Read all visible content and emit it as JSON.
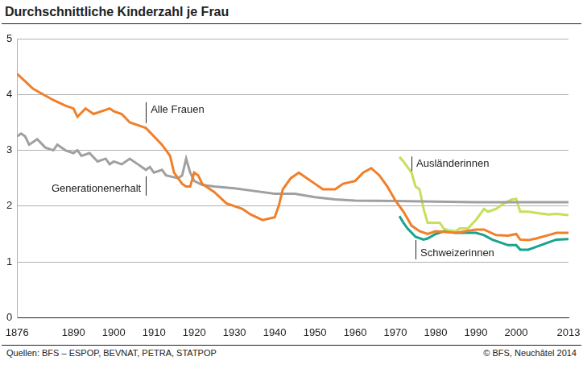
{
  "chart_data": {
    "type": "line",
    "title": "Durchschnittliche Kinderzahl je Frau",
    "source": "Quellen: BFS – ESPOP, BEVNAT, PETRA, STATPOP",
    "credit": "© BFS, Neuchâtel 2014",
    "xlim": [
      1876,
      2013
    ],
    "xticks": [
      1876,
      1890,
      1900,
      1910,
      1920,
      1930,
      1940,
      1950,
      1960,
      1970,
      1980,
      1990,
      2000,
      2013
    ],
    "ylim": [
      0,
      5
    ],
    "yticks": [
      0,
      1,
      2,
      3,
      4,
      5
    ],
    "grid": true,
    "series": [
      {
        "name": "Alle Frauen",
        "color": "#f07f2a",
        "x": [
          1876,
          1880,
          1885,
          1888,
          1890,
          1891,
          1893,
          1895,
          1897,
          1899,
          1900,
          1902,
          1904,
          1906,
          1908,
          1910,
          1912,
          1914,
          1915,
          1917,
          1918,
          1919,
          1920,
          1921,
          1922,
          1925,
          1928,
          1930,
          1932,
          1934,
          1937,
          1940,
          1941,
          1942,
          1944,
          1946,
          1948,
          1950,
          1952,
          1955,
          1957,
          1960,
          1962,
          1964,
          1966,
          1968,
          1970,
          1972,
          1974,
          1976,
          1978,
          1980,
          1985,
          1990,
          1992,
          1995,
          1998,
          2000,
          2001,
          2003,
          2005,
          2008,
          2010,
          2013
        ],
        "values": [
          4.37,
          4.1,
          3.9,
          3.8,
          3.75,
          3.6,
          3.75,
          3.65,
          3.7,
          3.75,
          3.7,
          3.65,
          3.5,
          3.45,
          3.4,
          3.25,
          3.1,
          2.9,
          2.6,
          2.4,
          2.35,
          2.35,
          2.6,
          2.55,
          2.4,
          2.25,
          2.05,
          2.0,
          1.95,
          1.85,
          1.75,
          1.8,
          2.0,
          2.3,
          2.5,
          2.6,
          2.5,
          2.4,
          2.3,
          2.3,
          2.4,
          2.45,
          2.6,
          2.68,
          2.55,
          2.35,
          2.1,
          1.9,
          1.65,
          1.55,
          1.5,
          1.55,
          1.52,
          1.58,
          1.58,
          1.48,
          1.47,
          1.5,
          1.4,
          1.39,
          1.42,
          1.48,
          1.52,
          1.52
        ]
      },
      {
        "name": "Generationenerhalt",
        "color": "#a0a0a0",
        "x": [
          1876,
          1877,
          1878,
          1879,
          1881,
          1883,
          1885,
          1886,
          1888,
          1890,
          1891,
          1892,
          1894,
          1896,
          1898,
          1899,
          1900,
          1902,
          1904,
          1906,
          1908,
          1909,
          1910,
          1912,
          1913,
          1916,
          1917,
          1918,
          1919,
          1920,
          1922,
          1925,
          1930,
          1935,
          1940,
          1945,
          1950,
          1955,
          1960,
          1970,
          1980,
          1990,
          2000,
          2013
        ],
        "values": [
          3.25,
          3.3,
          3.25,
          3.1,
          3.2,
          3.05,
          3.0,
          3.1,
          3.0,
          2.95,
          3.0,
          2.9,
          2.95,
          2.8,
          2.85,
          2.75,
          2.8,
          2.75,
          2.85,
          2.75,
          2.65,
          2.7,
          2.6,
          2.65,
          2.55,
          2.5,
          2.55,
          2.85,
          2.6,
          2.45,
          2.38,
          2.35,
          2.32,
          2.27,
          2.22,
          2.22,
          2.16,
          2.12,
          2.1,
          2.09,
          2.08,
          2.07,
          2.07,
          2.07
        ]
      },
      {
        "name": "Ausländerinnen",
        "color": "#c5e05a",
        "x": [
          1971,
          1972,
          1973,
          1974,
          1975,
          1976,
          1977,
          1978,
          1980,
          1981,
          1982,
          1983,
          1985,
          1986,
          1988,
          1990,
          1992,
          1993,
          1995,
          1997,
          1999,
          2000,
          2001,
          2003,
          2005,
          2008,
          2010,
          2013
        ],
        "values": [
          2.88,
          2.8,
          2.7,
          2.6,
          2.35,
          2.3,
          1.95,
          1.7,
          1.7,
          1.7,
          1.6,
          1.57,
          1.55,
          1.6,
          1.6,
          1.75,
          1.95,
          1.9,
          1.95,
          2.05,
          2.12,
          2.13,
          1.9,
          1.9,
          1.88,
          1.85,
          1.86,
          1.84
        ]
      },
      {
        "name": "Schweizerinnen",
        "color": "#1aa38c",
        "x": [
          1971,
          1972,
          1973,
          1975,
          1977,
          1978,
          1980,
          1982,
          1985,
          1990,
          1992,
          1994,
          1996,
          1998,
          2000,
          2001,
          2003,
          2005,
          2008,
          2010,
          2013
        ],
        "values": [
          1.82,
          1.7,
          1.6,
          1.45,
          1.4,
          1.42,
          1.5,
          1.55,
          1.52,
          1.52,
          1.48,
          1.4,
          1.35,
          1.3,
          1.3,
          1.22,
          1.22,
          1.27,
          1.35,
          1.4,
          1.41
        ]
      }
    ]
  }
}
